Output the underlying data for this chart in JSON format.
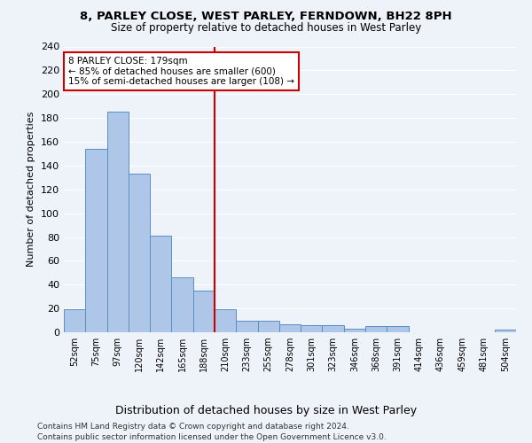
{
  "title1": "8, PARLEY CLOSE, WEST PARLEY, FERNDOWN, BH22 8PH",
  "title2": "Size of property relative to detached houses in West Parley",
  "xlabel": "Distribution of detached houses by size in West Parley",
  "ylabel": "Number of detached properties",
  "bar_labels": [
    "52sqm",
    "75sqm",
    "97sqm",
    "120sqm",
    "142sqm",
    "165sqm",
    "188sqm",
    "210sqm",
    "233sqm",
    "255sqm",
    "278sqm",
    "301sqm",
    "323sqm",
    "346sqm",
    "368sqm",
    "391sqm",
    "414sqm",
    "436sqm",
    "459sqm",
    "481sqm",
    "504sqm"
  ],
  "bar_values": [
    19,
    154,
    185,
    133,
    81,
    46,
    35,
    19,
    10,
    10,
    7,
    6,
    6,
    3,
    5,
    5,
    0,
    0,
    0,
    0,
    2
  ],
  "bar_color": "#aec6e8",
  "bar_edgecolor": "#5a8fc2",
  "vline_x": 6.5,
  "vline_color": "#cc0000",
  "annotation_text": "8 PARLEY CLOSE: 179sqm\n← 85% of detached houses are smaller (600)\n15% of semi-detached houses are larger (108) →",
  "annotation_box_color": "#ffffff",
  "annotation_box_edgecolor": "#cc0000",
  "ylim": [
    0,
    240
  ],
  "yticks": [
    0,
    20,
    40,
    60,
    80,
    100,
    120,
    140,
    160,
    180,
    200,
    220,
    240
  ],
  "footer1": "Contains HM Land Registry data © Crown copyright and database right 2024.",
  "footer2": "Contains public sector information licensed under the Open Government Licence v3.0.",
  "bg_color": "#eef2f9",
  "grid_color": "#ffffff"
}
